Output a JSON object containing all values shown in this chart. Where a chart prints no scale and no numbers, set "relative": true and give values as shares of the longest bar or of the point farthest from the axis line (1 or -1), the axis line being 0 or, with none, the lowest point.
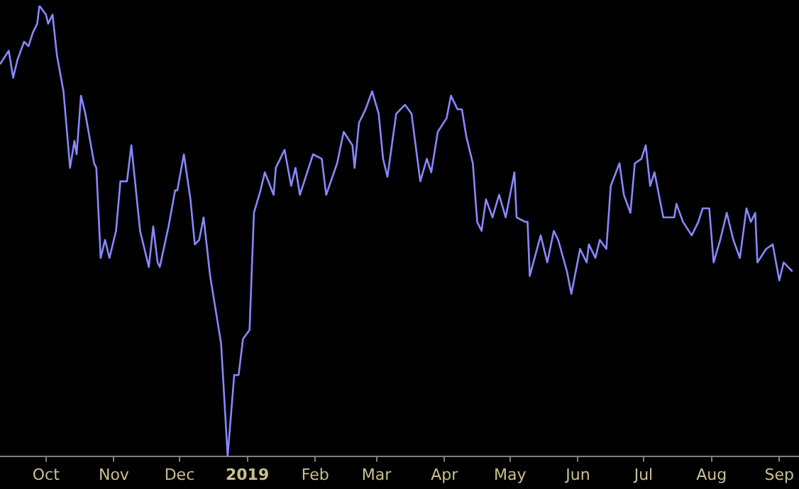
{
  "chart_data": {
    "type": "line",
    "relative": true,
    "color": "#8888ff",
    "marker": "none",
    "grid": false,
    "legend": false,
    "tick_labels": "x",
    "xlim": [
      "2018-09-10",
      "2019-09-10"
    ],
    "xticks": [
      {
        "value": "2018-10-01",
        "label": "Oct"
      },
      {
        "value": "2018-11-01",
        "label": "Nov"
      },
      {
        "value": "2018-12-01",
        "label": "Dec"
      },
      {
        "value": "2019-01-01",
        "label": "2019"
      },
      {
        "value": "2019-02-01",
        "label": "Feb"
      },
      {
        "value": "2019-03-01",
        "label": "Mar"
      },
      {
        "value": "2019-04-01",
        "label": "Apr"
      },
      {
        "value": "2019-05-01",
        "label": "May"
      },
      {
        "value": "2019-06-01",
        "label": "Jun"
      },
      {
        "value": "2019-07-01",
        "label": "Jul"
      },
      {
        "value": "2019-08-01",
        "label": "Aug"
      },
      {
        "value": "2019-09-01",
        "label": "Sep"
      }
    ],
    "x": [
      "2018-09-10",
      "2018-09-14",
      "2018-09-16",
      "2018-09-18",
      "2018-09-21",
      "2018-09-23",
      "2018-09-25",
      "2018-09-27",
      "2018-09-28",
      "2018-10-01",
      "2018-10-02",
      "2018-10-04",
      "2018-10-06",
      "2018-10-09",
      "2018-10-12",
      "2018-10-14",
      "2018-10-15",
      "2018-10-17",
      "2018-10-19",
      "2018-10-23",
      "2018-10-24",
      "2018-10-26",
      "2018-10-28",
      "2018-10-30",
      "2018-11-02",
      "2018-11-04",
      "2018-11-07",
      "2018-11-09",
      "2018-11-13",
      "2018-11-15",
      "2018-11-17",
      "2018-11-19",
      "2018-11-21",
      "2018-11-22",
      "2018-11-26",
      "2018-11-29",
      "2018-11-30",
      "2018-12-03",
      "2018-12-06",
      "2018-12-08",
      "2018-12-10",
      "2018-12-12",
      "2018-12-15",
      "2018-12-20",
      "2018-12-23",
      "2018-12-26",
      "2018-12-28",
      "2018-12-30",
      "2019-01-02",
      "2019-01-04",
      "2019-01-07",
      "2019-01-09",
      "2019-01-13",
      "2019-01-14",
      "2019-01-18",
      "2019-01-21",
      "2019-01-23",
      "2019-01-25",
      "2019-01-31",
      "2019-02-04",
      "2019-02-06",
      "2019-02-11",
      "2019-02-14",
      "2019-02-18",
      "2019-02-19",
      "2019-02-21",
      "2019-02-24",
      "2019-02-27",
      "2019-03-02",
      "2019-03-04",
      "2019-03-06",
      "2019-03-10",
      "2019-03-14",
      "2019-03-17",
      "2019-03-21",
      "2019-03-24",
      "2019-03-26",
      "2019-03-29",
      "2019-04-02",
      "2019-04-04",
      "2019-04-07",
      "2019-04-09",
      "2019-04-11",
      "2019-04-14",
      "2019-04-16",
      "2019-04-18",
      "2019-04-20",
      "2019-04-23",
      "2019-04-26",
      "2019-04-29",
      "2019-05-03",
      "2019-05-04",
      "2019-05-08",
      "2019-05-09",
      "2019-05-10",
      "2019-05-15",
      "2019-05-18",
      "2019-05-21",
      "2019-05-23",
      "2019-05-27",
      "2019-05-29",
      "2019-06-02",
      "2019-06-05",
      "2019-06-06",
      "2019-06-09",
      "2019-06-11",
      "2019-06-14",
      "2019-06-16",
      "2019-06-20",
      "2019-06-22",
      "2019-06-25",
      "2019-06-27",
      "2019-06-30",
      "2019-07-02",
      "2019-07-04",
      "2019-07-06",
      "2019-07-10",
      "2019-07-15",
      "2019-07-16",
      "2019-07-19",
      "2019-07-23",
      "2019-07-26",
      "2019-07-28",
      "2019-07-31",
      "2019-08-02",
      "2019-08-05",
      "2019-08-08",
      "2019-08-11",
      "2019-08-14",
      "2019-08-17",
      "2019-08-19",
      "2019-08-21",
      "2019-08-22",
      "2019-08-26",
      "2019-08-29",
      "2019-09-01",
      "2019-09-03",
      "2019-09-07"
    ],
    "values": [
      0.87,
      0.9,
      0.84,
      0.88,
      0.92,
      0.91,
      0.94,
      0.96,
      1,
      0.98,
      0.96,
      0.98,
      0.89,
      0.81,
      0.64,
      0.7,
      0.67,
      0.8,
      0.76,
      0.65,
      0.64,
      0.44,
      0.48,
      0.44,
      0.5,
      0.61,
      0.61,
      0.69,
      0.5,
      0.46,
      0.42,
      0.51,
      0.43,
      0.42,
      0.51,
      0.59,
      0.59,
      0.67,
      0.57,
      0.47,
      0.48,
      0.53,
      0.4,
      0.25,
      0,
      0.18,
      0.18,
      0.26,
      0.28,
      0.54,
      0.59,
      0.63,
      0.58,
      0.64,
      0.68,
      0.6,
      0.64,
      0.58,
      0.67,
      0.66,
      0.58,
      0.65,
      0.72,
      0.69,
      0.64,
      0.74,
      0.77,
      0.81,
      0.76,
      0.66,
      0.62,
      0.76,
      0.78,
      0.76,
      0.61,
      0.66,
      0.63,
      0.72,
      0.75,
      0.8,
      0.77,
      0.77,
      0.71,
      0.65,
      0.52,
      0.5,
      0.57,
      0.53,
      0.58,
      0.53,
      0.63,
      0.53,
      0.52,
      0.52,
      0.4,
      0.49,
      0.43,
      0.5,
      0.48,
      0.41,
      0.36,
      0.46,
      0.43,
      0.47,
      0.44,
      0.48,
      0.46,
      0.6,
      0.65,
      0.58,
      0.54,
      0.65,
      0.66,
      0.69,
      0.6,
      0.63,
      0.53,
      0.53,
      0.56,
      0.52,
      0.49,
      0.52,
      0.55,
      0.55,
      0.43,
      0.48,
      0.54,
      0.48,
      0.44,
      0.55,
      0.52,
      0.54,
      0.43,
      0.46,
      0.47,
      0.39,
      0.43,
      0.41
    ]
  }
}
